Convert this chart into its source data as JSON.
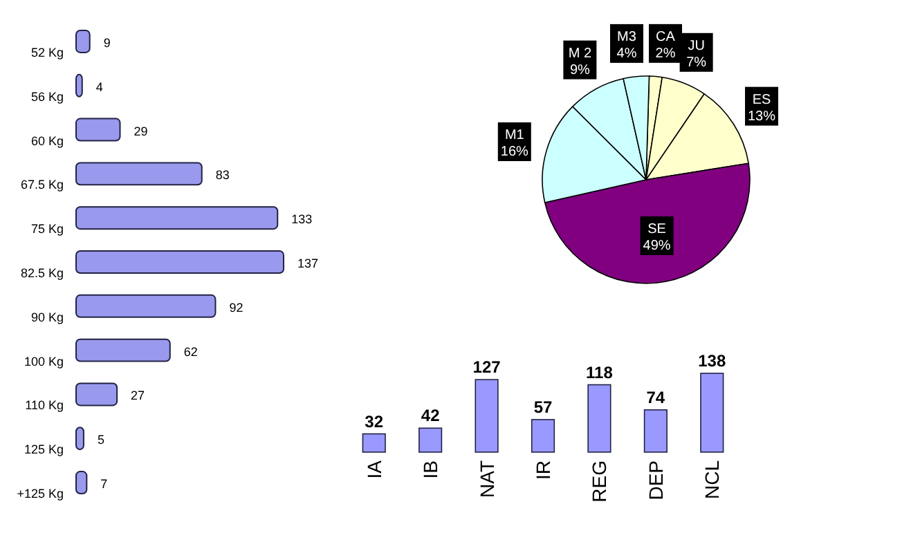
{
  "chart_data": [
    {
      "type": "bar",
      "orientation": "horizontal",
      "categories": [
        "52 Kg",
        "56 Kg",
        "60 Kg",
        "67.5 Kg",
        "75 Kg",
        "82.5 Kg",
        "90 Kg",
        "100 Kg",
        "110 Kg",
        "125 Kg",
        "+125 Kg"
      ],
      "values": [
        9,
        4,
        29,
        83,
        133,
        137,
        92,
        62,
        27,
        5,
        7
      ],
      "color": "#9999ee",
      "data_labels": true
    },
    {
      "type": "pie",
      "categories": [
        "CA",
        "JU",
        "ES",
        "SE",
        "M1",
        "M 2",
        "M3"
      ],
      "values": [
        2,
        7,
        13,
        49,
        16,
        9,
        4
      ],
      "colors": [
        "#ffffcc",
        "#ffffcc",
        "#ffffcc",
        "#800080",
        "#ccffff",
        "#ccffff",
        "#ccffff"
      ],
      "value_labels": [
        "2%",
        "7%",
        "13%",
        "49%",
        "16%",
        "9%",
        "4%"
      ]
    },
    {
      "type": "bar",
      "categories": [
        "IA",
        "IB",
        "NAT",
        "IR",
        "REG",
        "DEP",
        "NCL"
      ],
      "values": [
        32,
        42,
        127,
        57,
        118,
        74,
        138
      ],
      "color": "#9999ff",
      "data_labels": true
    }
  ]
}
